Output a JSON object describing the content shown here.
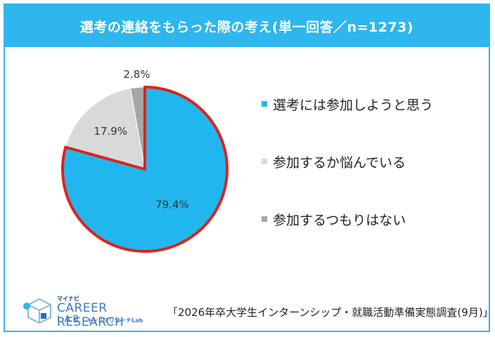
{
  "header": {
    "title": "選考の連絡をもらった際の考え(単一回答／n=1273)"
  },
  "chart_data": {
    "type": "pie",
    "title": "選考の連絡をもらった際の考え(単一回答／n=1273)",
    "slices": [
      {
        "label": "選考には参加しようと思う",
        "value": 79.4,
        "display": "79.4%",
        "color": "#21b7ee",
        "highlighted": true
      },
      {
        "label": "参加するか悩んでいる",
        "value": 17.9,
        "display": "17.9%",
        "color": "#d9d9d9",
        "highlighted": false
      },
      {
        "label": "参加するつもりはない",
        "value": 2.8,
        "display": "2.8%",
        "color": "#a6a6a6",
        "highlighted": false
      }
    ],
    "legend_position": "right",
    "highlight_color": "#e0211a"
  },
  "logo": {
    "kana": "マイナビ",
    "main": "CAREER RESEARCH",
    "lab": "LAB",
    "sub": "キャリアリサーチLab"
  },
  "source": {
    "text": "「2026年卒大学生インターンシップ・就職活動準備実態調査(9月)」"
  }
}
